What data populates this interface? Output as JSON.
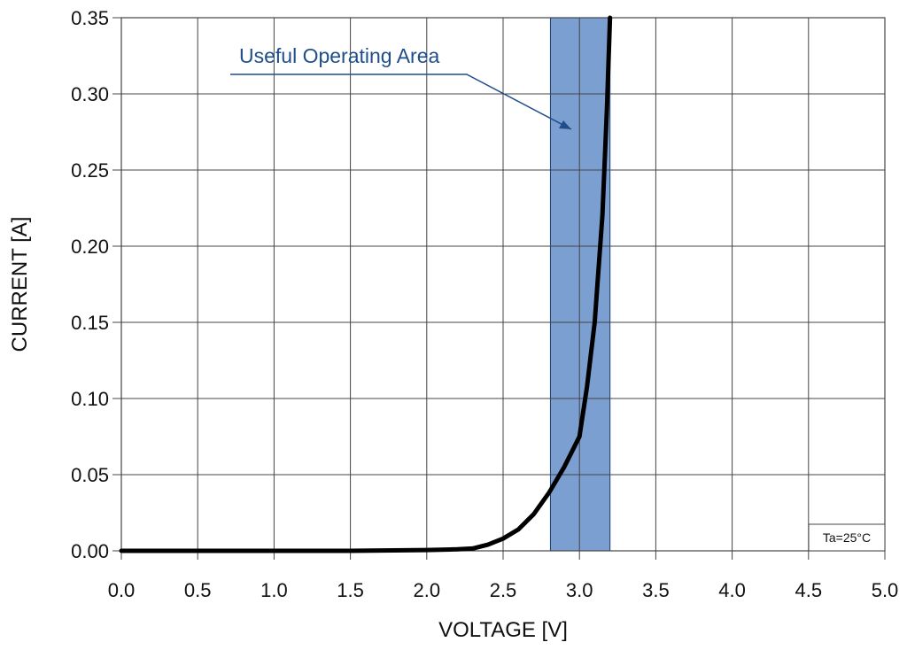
{
  "chart_data": {
    "type": "line",
    "xlabel": "VOLTAGE [V]",
    "ylabel": "CURRENT [A]",
    "xlim": [
      0.0,
      5.0
    ],
    "ylim": [
      0.0,
      0.35
    ],
    "x_ticks": [
      "0.0",
      "0.5",
      "1.0",
      "1.5",
      "2.0",
      "2.5",
      "3.0",
      "3.5",
      "4.0",
      "4.5",
      "5.0"
    ],
    "y_ticks": [
      "0.00",
      "0.05",
      "0.10",
      "0.15",
      "0.20",
      "0.25",
      "0.30",
      "0.35"
    ],
    "grid": true,
    "series": [
      {
        "color": "#000000",
        "x": [
          0.0,
          0.5,
          1.0,
          1.5,
          2.0,
          2.2,
          2.3,
          2.4,
          2.5,
          2.6,
          2.7,
          2.8,
          2.9,
          3.0,
          3.05,
          3.1,
          3.15,
          3.18,
          3.2
        ],
        "y": [
          0.0,
          0.0,
          0.0,
          0.0,
          0.0005,
          0.001,
          0.0015,
          0.004,
          0.008,
          0.014,
          0.024,
          0.038,
          0.055,
          0.075,
          0.108,
          0.15,
          0.22,
          0.29,
          0.35
        ]
      }
    ],
    "highlight_band": {
      "x_range": [
        2.81,
        3.2
      ],
      "color": "#7b9fd0",
      "label": "Useful Operating Area"
    },
    "condition_label": "Ta=25°C"
  }
}
